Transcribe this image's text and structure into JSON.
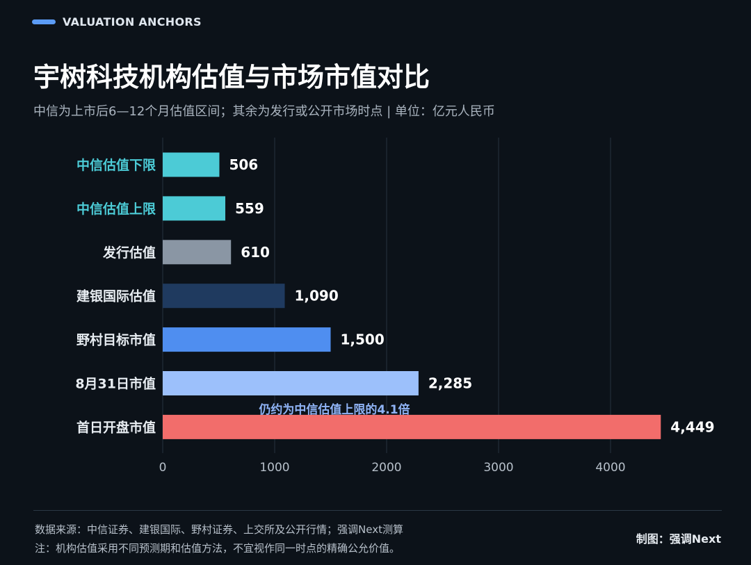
{
  "header": {
    "eyebrow": "VALUATION ANCHORS",
    "title": "宇树科技机构估值与市场市值对比",
    "subtitle": "中信为上市后6—12个月估值区间；其余为发行或公开市场时点 | 单位：亿元人民币"
  },
  "chart_data": {
    "type": "bar",
    "orientation": "horizontal",
    "categories": [
      "中信估值下限",
      "中信估值上限",
      "发行估值",
      "建银国际估值",
      "野村目标市值",
      "8月31日市值",
      "首日开盘市值"
    ],
    "values": [
      506,
      559,
      610,
      1090,
      1500,
      2285,
      4449
    ],
    "value_labels": [
      "506",
      "559",
      "610",
      "1,090",
      "1,500",
      "2,285",
      "4,449"
    ],
    "bar_colors": [
      "#4ccbd6",
      "#4ccbd6",
      "#8a96a4",
      "#1f3a5f",
      "#4f8ef0",
      "#9cc0fb",
      "#f26d6b"
    ],
    "label_colors": [
      "#4ccbd6",
      "#4ccbd6",
      "#e8edf2",
      "#e8edf2",
      "#e8edf2",
      "#e8edf2",
      "#e8edf2"
    ],
    "xlim": [
      0,
      4500
    ],
    "xticks": [
      0,
      1000,
      2000,
      3000,
      4000
    ],
    "grid": true,
    "annotation": "仍约为中信估值上限的4.1倍"
  },
  "footer": {
    "source": "数据来源：中信证券、建银国际、野村证券、上交所及公开行情；强调Next测算",
    "note": "注：机构估值采用不同预测期和估值方法，不宜视作同一时点的精确公允价值。",
    "credit": "制图：强调Next"
  }
}
